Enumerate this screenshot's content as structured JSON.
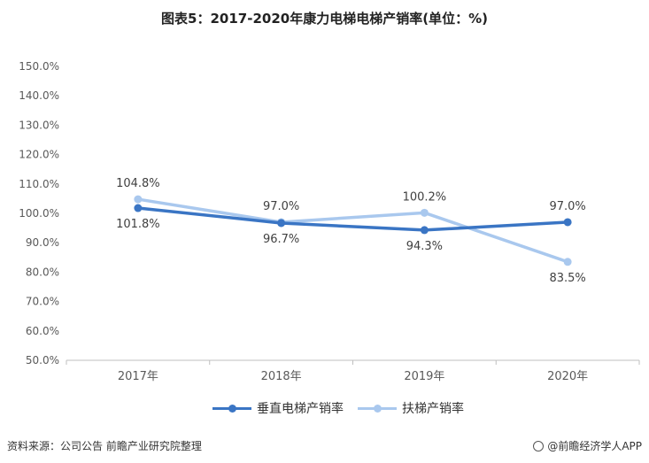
{
  "title": "图表5：2017-2020年康力电梯电梯产销率(单位：%)",
  "chart_data": {
    "type": "line",
    "categories": [
      "2017年",
      "2018年",
      "2019年",
      "2020年"
    ],
    "y_ticks": [
      "50.0%",
      "60.0%",
      "70.0%",
      "80.0%",
      "90.0%",
      "100.0%",
      "110.0%",
      "120.0%",
      "130.0%",
      "140.0%",
      "150.0%"
    ],
    "ylim": [
      50,
      150
    ],
    "grid": false,
    "legend_position": "bottom",
    "series": [
      {
        "name": "垂直电梯产销率",
        "values": [
          101.8,
          96.7,
          94.3,
          97.0
        ],
        "labels": [
          "101.8%",
          "96.7%",
          "94.3%",
          "97.0%"
        ],
        "color": "#3a75c4"
      },
      {
        "name": "扶梯产销率",
        "values": [
          104.8,
          97.0,
          100.2,
          83.5
        ],
        "labels": [
          "104.8%",
          "97.0%",
          "100.2%",
          "83.5%"
        ],
        "color": "#a9c8ee"
      }
    ]
  },
  "footer": {
    "source": "资料来源：公司公告 前瞻产业研究院整理",
    "brand": "@前瞻经济学人APP"
  }
}
